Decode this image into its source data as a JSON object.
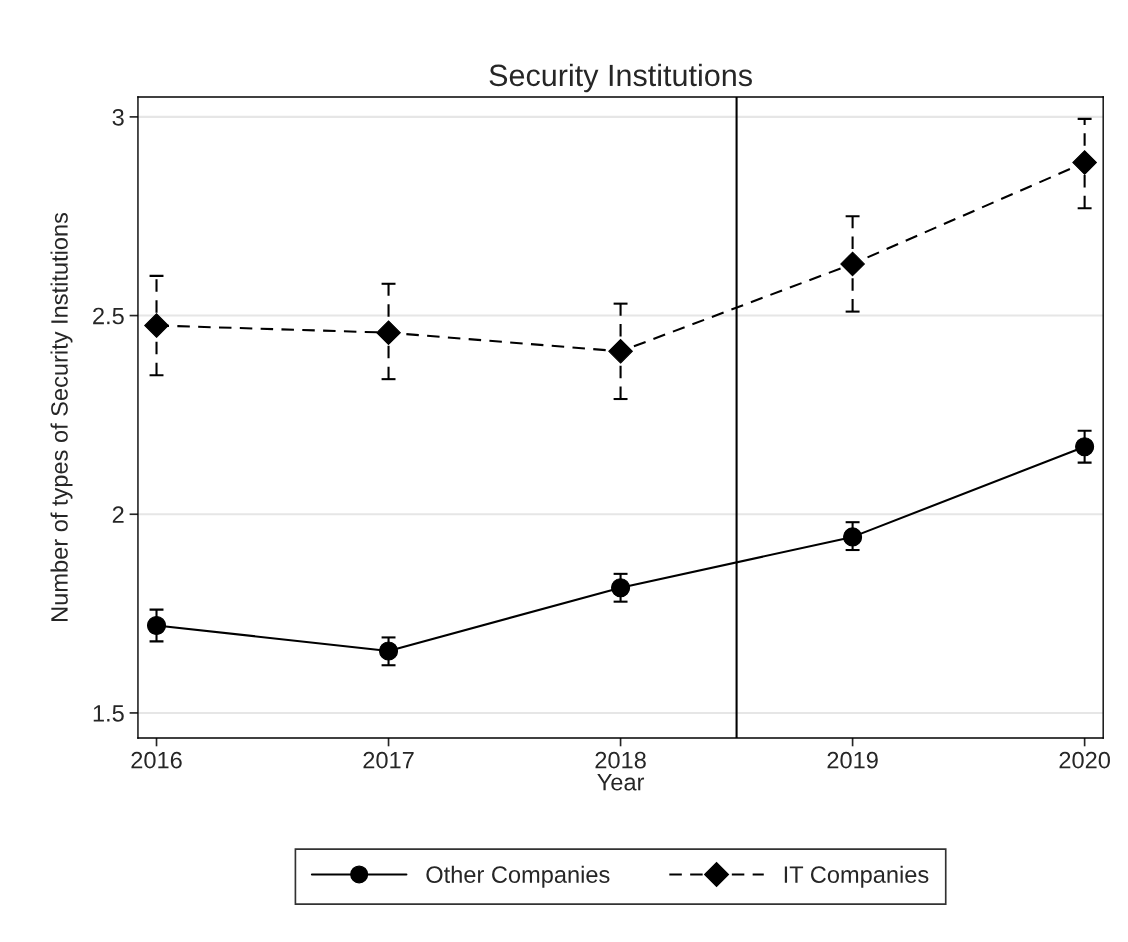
{
  "chart_data": {
    "type": "line",
    "title": "Security Institutions",
    "xlabel": "Year",
    "ylabel": "Number of types of Security Institutions",
    "x": [
      2016,
      2017,
      2018,
      2019,
      2020
    ],
    "series": [
      {
        "name": "Other Companies",
        "color": "#000000",
        "marker": "circle",
        "line_style": "solid",
        "values": [
          1.72,
          1.656,
          1.815,
          1.943,
          2.17
        ],
        "errors": [
          [
            1.68,
            1.76
          ],
          [
            1.62,
            1.69
          ],
          [
            1.78,
            1.85
          ],
          [
            1.91,
            1.98
          ],
          [
            2.13,
            2.21
          ]
        ]
      },
      {
        "name": "IT Companies",
        "color": "#000000",
        "marker": "diamond",
        "line_style": "dashed",
        "values": [
          2.475,
          2.457,
          2.41,
          2.63,
          2.885
        ],
        "errors": [
          [
            2.35,
            2.6
          ],
          [
            2.34,
            2.58
          ],
          [
            2.29,
            2.53
          ],
          [
            2.51,
            2.75
          ],
          [
            2.77,
            2.995
          ]
        ]
      }
    ],
    "xlim": [
      2015.92,
      2020.08
    ],
    "xticks": [
      2016,
      2017,
      2018,
      2019,
      2020
    ],
    "ylim": [
      1.437,
      3.05
    ],
    "yticks": [
      1.5,
      2,
      2.5,
      3
    ],
    "ref_lines": [
      {
        "axis": "x",
        "value": 2018.5,
        "color": "#000000"
      }
    ],
    "grid": "y",
    "legend": "bottom"
  }
}
